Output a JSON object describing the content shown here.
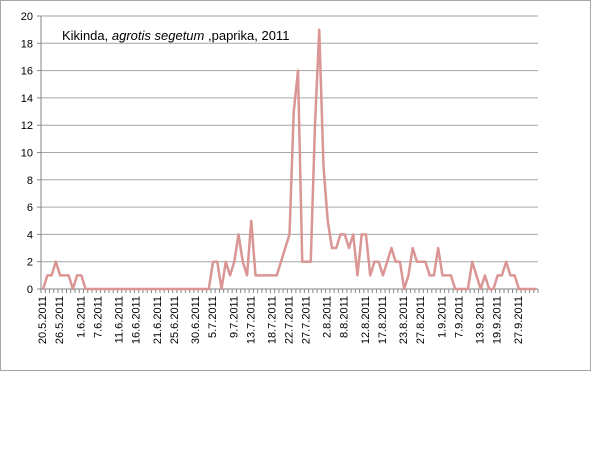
{
  "chart_data": {
    "type": "line",
    "title_parts": {
      "location": "Kikinda,",
      "species": "agrotis segetum",
      "rest": ",paprika, 2011"
    },
    "xlabel": "",
    "ylabel": "",
    "ylim": [
      0,
      20
    ],
    "y_ticks": [
      0,
      2,
      4,
      6,
      8,
      10,
      12,
      14,
      16,
      18,
      20
    ],
    "grid": "horizontal",
    "legend": "none",
    "series_color": "#d99694",
    "x_tick_labels": [
      "20.5.2011",
      "26.5.2011",
      "1.6.2011",
      "7.6.2011",
      "11.6.2011",
      "16.6.2011",
      "21.6.2011",
      "25.6.2011",
      "30.6.2011",
      "5.7.2011",
      "9.7.2011",
      "13.7.2011",
      "18.7.2011",
      "22.7.2011",
      "27.7.2011",
      "2.8.2011",
      "8.8.2011",
      "12.8.2011",
      "17.8.2011",
      "23.8.2011",
      "27.8.2011",
      "1.9.2011",
      "7.9.2011",
      "13.9.2011",
      "19.9.2011",
      "27.9.2011"
    ],
    "values": [
      0,
      1,
      1,
      2,
      1,
      1,
      1,
      0,
      1,
      1,
      0,
      0,
      0,
      0,
      0,
      0,
      0,
      0,
      0,
      0,
      0,
      0,
      0,
      0,
      0,
      0,
      0,
      0,
      0,
      0,
      0,
      0,
      0,
      0,
      0,
      0,
      0,
      0,
      0,
      0,
      2,
      2,
      0,
      2,
      1,
      2,
      4,
      2,
      1,
      5,
      1,
      1,
      1,
      1,
      1,
      1,
      2,
      3,
      4,
      13,
      16,
      2,
      2,
      2,
      12,
      19,
      9,
      5,
      3,
      3,
      4,
      4,
      3,
      4,
      1,
      4,
      4,
      1,
      2,
      2,
      1,
      2,
      3,
      2,
      2,
      0,
      1,
      3,
      2,
      2,
      2,
      1,
      1,
      3,
      1,
      1,
      1,
      0,
      0,
      0,
      0,
      2,
      1,
      0,
      1,
      0,
      0,
      1,
      1,
      2,
      1,
      1,
      0,
      0,
      0,
      0,
      0
    ]
  }
}
